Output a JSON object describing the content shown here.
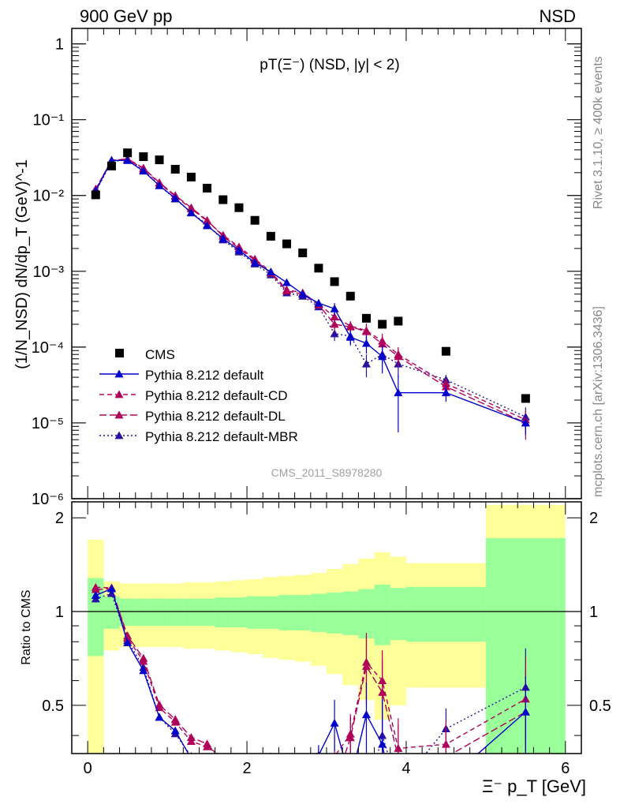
{
  "header": {
    "left": "900 GeV pp",
    "right": "NSD"
  },
  "side_labels": {
    "rivet": "Rivet 3.1.10, ≥ 400k events",
    "mcplots": "mcplots.cern.ch [arXiv:1306.3436]"
  },
  "chart_data": {
    "type": "scatter",
    "title": "pT(Ξ⁻) (NSD, |y| < 2)",
    "analysis_id": "CMS_2011_S8978280",
    "ylabel_top": "(1/N_NSD) dN/dp_T (GeV)^-1",
    "ylabel_ratio": "Ratio to CMS",
    "xlabel": "Ξ⁻ p_T [GeV]",
    "xlim": [
      -0.2,
      6.2
    ],
    "ylim_top": [
      1e-06,
      1.6
    ],
    "ylim_ratio": [
      0.35,
      2.25
    ],
    "x_ticks": [
      "0",
      "2",
      "4",
      "6"
    ],
    "y_ticks_top": [
      "1",
      "10⁻¹",
      "10⁻²",
      "10⁻³",
      "10⁻⁴",
      "10⁻⁵",
      "10⁻⁶"
    ],
    "y_ticks_ratio": [
      "0.5",
      "1",
      "2"
    ],
    "colors": {
      "cms": "#000000",
      "default": "#0000cc",
      "cd": "#b0005a",
      "dl": "#b0005a",
      "mbr": "#2b10a0",
      "band_inner": "#99ff99",
      "band_outer": "#ffff99"
    },
    "cms": {
      "name": "CMS",
      "x": [
        0.1,
        0.3,
        0.5,
        0.7,
        0.9,
        1.1,
        1.3,
        1.5,
        1.7,
        1.9,
        2.1,
        2.3,
        2.5,
        2.7,
        2.9,
        3.1,
        3.3,
        3.5,
        3.7,
        3.9,
        4.5,
        5.5
      ],
      "y": [
        0.0102,
        0.0245,
        0.0365,
        0.0325,
        0.0295,
        0.0222,
        0.0175,
        0.0125,
        0.0088,
        0.0069,
        0.0047,
        0.0029,
        0.0023,
        0.00175,
        0.0011,
        0.00073,
        0.00047,
        0.00024,
        0.0002,
        0.00022,
        8.8e-05,
        2.1e-05
      ]
    },
    "band": {
      "edges": [
        0.0,
        0.2,
        0.4,
        0.6,
        0.8,
        1.0,
        1.2,
        1.4,
        1.6,
        1.8,
        2.0,
        2.2,
        2.4,
        2.6,
        2.8,
        3.0,
        3.2,
        3.4,
        3.6,
        3.8,
        4.0,
        5.0,
        6.0
      ],
      "inner": [
        0.28,
        0.12,
        0.1,
        0.1,
        0.1,
        0.1,
        0.1,
        0.1,
        0.11,
        0.11,
        0.12,
        0.12,
        0.13,
        0.13,
        0.14,
        0.15,
        0.16,
        0.18,
        0.22,
        0.19,
        0.2,
        0.72
      ],
      "outer": [
        0.7,
        0.25,
        0.23,
        0.23,
        0.23,
        0.23,
        0.24,
        0.24,
        0.25,
        0.26,
        0.27,
        0.29,
        0.3,
        0.31,
        0.33,
        0.37,
        0.42,
        0.48,
        0.55,
        0.5,
        0.43,
        1.2
      ]
    },
    "series": [
      {
        "name": "Pythia 8.212 default",
        "key": "default",
        "line": "solid",
        "x": [
          0.1,
          0.3,
          0.5,
          0.7,
          0.9,
          1.1,
          1.3,
          1.5,
          1.7,
          1.9,
          2.1,
          2.3,
          2.5,
          2.7,
          2.9,
          3.1,
          3.3,
          3.5,
          3.7,
          3.9,
          4.5,
          5.5
        ],
        "y": [
          0.0115,
          0.029,
          0.029,
          0.021,
          0.0135,
          0.0092,
          0.0059,
          0.004,
          0.0027,
          0.0019,
          0.0013,
          0.00098,
          0.00071,
          0.0005,
          0.00038,
          0.00032,
          0.000135,
          0.000112,
          7.5e-05,
          2.5e-05,
          2.5e-05,
          1e-05
        ],
        "err": [
          0.0003,
          0.0006,
          0.0006,
          0.0004,
          0.0003,
          0.0002,
          0.00015,
          0.0001,
          8e-05,
          6e-05,
          5e-05,
          4e-05,
          4e-05,
          3e-05,
          3e-05,
          6e-05,
          3e-05,
          3e-05,
          3e-05,
          1.75e-05,
          6e-06,
          3e-06
        ]
      },
      {
        "name": "Pythia 8.212 default-CD",
        "key": "cd",
        "line": "dashed",
        "x": [
          0.1,
          0.3,
          0.5,
          0.7,
          0.9,
          1.1,
          1.3,
          1.5,
          1.7,
          1.9,
          2.1,
          2.3,
          2.5,
          2.7,
          2.9,
          3.1,
          3.3,
          3.5,
          3.7,
          3.9,
          4.5,
          5.5
        ],
        "y": [
          0.0122,
          0.0292,
          0.03,
          0.0225,
          0.0145,
          0.0098,
          0.0067,
          0.0046,
          0.003,
          0.0021,
          0.00145,
          0.00098,
          0.00057,
          0.00052,
          0.00037,
          0.00025,
          0.00019,
          0.000165,
          0.00012,
          8e-05,
          3.3e-05,
          1.1e-05
        ],
        "err": [
          0.0003,
          0.0006,
          0.0006,
          0.0004,
          0.0003,
          0.0002,
          0.00015,
          0.0001,
          8e-05,
          6e-05,
          5e-05,
          4e-05,
          4e-05,
          3e-05,
          3e-05,
          4e-05,
          3e-05,
          4e-05,
          3e-05,
          2e-05,
          6e-06,
          4e-06
        ]
      },
      {
        "name": "Pythia 8.212 default-DL",
        "key": "dl",
        "line": "dashed2",
        "x": [
          0.1,
          0.3,
          0.5,
          0.7,
          0.9,
          1.1,
          1.3,
          1.5,
          1.7,
          1.9,
          2.1,
          2.3,
          2.5,
          2.7,
          2.9,
          3.1,
          3.3,
          3.5,
          3.7,
          3.9,
          4.5,
          5.5
        ],
        "y": [
          0.012,
          0.029,
          0.0305,
          0.023,
          0.0148,
          0.01,
          0.0069,
          0.0047,
          0.0029,
          0.002,
          0.0014,
          0.00095,
          0.00055,
          0.0005,
          0.00036,
          0.0002,
          0.000185,
          0.00016,
          0.00011,
          7.5e-05,
          3e-05,
          1e-05
        ],
        "err": [
          0.0003,
          0.0006,
          0.0006,
          0.0004,
          0.0003,
          0.0002,
          0.00015,
          0.0001,
          8e-05,
          6e-05,
          5e-05,
          4e-05,
          4e-05,
          3e-05,
          3e-05,
          4e-05,
          3e-05,
          4e-05,
          3e-05,
          2e-05,
          6e-06,
          4e-06
        ]
      },
      {
        "name": "Pythia 8.212 default-MBR",
        "key": "mbr",
        "line": "dotted",
        "x": [
          0.1,
          0.3,
          0.5,
          0.7,
          0.9,
          1.1,
          1.3,
          1.5,
          1.7,
          1.9,
          2.1,
          2.3,
          2.5,
          2.7,
          2.9,
          3.1,
          3.3,
          3.5,
          3.7,
          3.9,
          4.5,
          5.5
        ],
        "y": [
          0.0112,
          0.028,
          0.0295,
          0.0215,
          0.0135,
          0.009,
          0.006,
          0.0041,
          0.0026,
          0.0018,
          0.00125,
          0.0009,
          0.00052,
          0.00047,
          0.00034,
          0.00015,
          0.00014,
          6e-05,
          8e-05,
          6e-05,
          3.7e-05,
          1.2e-05
        ],
        "err": [
          0.0003,
          0.0006,
          0.0006,
          0.0004,
          0.0003,
          0.0002,
          0.00015,
          0.0001,
          8e-05,
          6e-05,
          5e-05,
          4e-05,
          4e-05,
          3e-05,
          3e-05,
          3e-05,
          3e-05,
          2e-05,
          2e-05,
          2e-05,
          6e-06,
          4e-06
        ]
      }
    ]
  }
}
